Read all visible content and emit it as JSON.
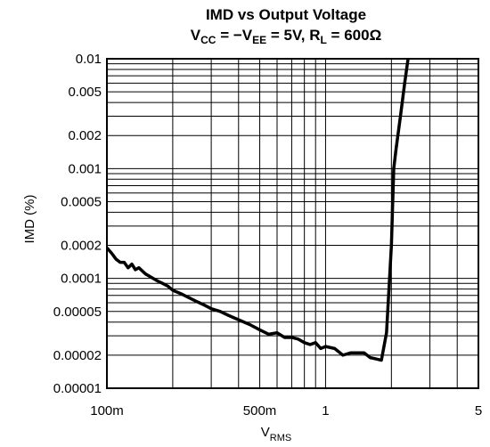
{
  "chart_data": {
    "type": "line",
    "title_line1": "IMD vs Output Voltage",
    "title_line2": {
      "p1": "V",
      "s1": "CC",
      "p2": " = −V",
      "s2": "EE",
      "p3": " = 5V, R",
      "s3": "L",
      "p4": " = 600Ω"
    },
    "xlabel": {
      "main": "V",
      "sub": "RMS"
    },
    "ylabel": "IMD (%)",
    "x_scale": "log",
    "y_scale": "log",
    "xlim": [
      0.1,
      5
    ],
    "ylim": [
      1e-05,
      0.01
    ],
    "grid": true,
    "x_ticks": [
      {
        "value": 0.1,
        "label": "100m"
      },
      {
        "value": 0.5,
        "label": "500m"
      },
      {
        "value": 1,
        "label": "1"
      },
      {
        "value": 5,
        "label": "5"
      }
    ],
    "y_ticks": [
      {
        "value": 0.01,
        "label": "0.01"
      },
      {
        "value": 0.005,
        "label": "0.005"
      },
      {
        "value": 0.002,
        "label": "0.002"
      },
      {
        "value": 0.001,
        "label": "0.001"
      },
      {
        "value": 0.0005,
        "label": "0.0005"
      },
      {
        "value": 0.0002,
        "label": "0.0002"
      },
      {
        "value": 0.0001,
        "label": "0.0001"
      },
      {
        "value": 5e-05,
        "label": "0.00005"
      },
      {
        "value": 2e-05,
        "label": "0.00002"
      },
      {
        "value": 1e-05,
        "label": "0.00001"
      }
    ],
    "series": [
      {
        "x": [
          0.1,
          0.105,
          0.11,
          0.115,
          0.12,
          0.125,
          0.13,
          0.135,
          0.14,
          0.15,
          0.16,
          0.17,
          0.18,
          0.19,
          0.2,
          0.22,
          0.24,
          0.26,
          0.28,
          0.3,
          0.33,
          0.36,
          0.4,
          0.45,
          0.5,
          0.55,
          0.6,
          0.65,
          0.7,
          0.75,
          0.8,
          0.85,
          0.9,
          0.95,
          1.0,
          1.1,
          1.2,
          1.3,
          1.4,
          1.5,
          1.6,
          1.7,
          1.8,
          1.9,
          2.0,
          2.05,
          2.1,
          2.2,
          2.3,
          2.4
        ],
        "y": [
          0.00019,
          0.00017,
          0.00015,
          0.00014,
          0.00014,
          0.000125,
          0.000135,
          0.00012,
          0.000125,
          0.00011,
          0.000102,
          9.5e-05,
          9e-05,
          8.5e-05,
          7.8e-05,
          7.2e-05,
          6.6e-05,
          6.1e-05,
          5.7e-05,
          5.3e-05,
          5e-05,
          4.6e-05,
          4.2e-05,
          3.8e-05,
          3.4e-05,
          3.1e-05,
          3.2e-05,
          2.9e-05,
          2.9e-05,
          2.8e-05,
          2.6e-05,
          2.5e-05,
          2.6e-05,
          2.3e-05,
          2.4e-05,
          2.3e-05,
          2e-05,
          2.1e-05,
          2.1e-05,
          2.1e-05,
          1.9e-05,
          1.85e-05,
          1.8e-05,
          3.2e-05,
          0.0002,
          0.001,
          0.0015,
          0.003,
          0.006,
          0.011
        ]
      }
    ]
  }
}
